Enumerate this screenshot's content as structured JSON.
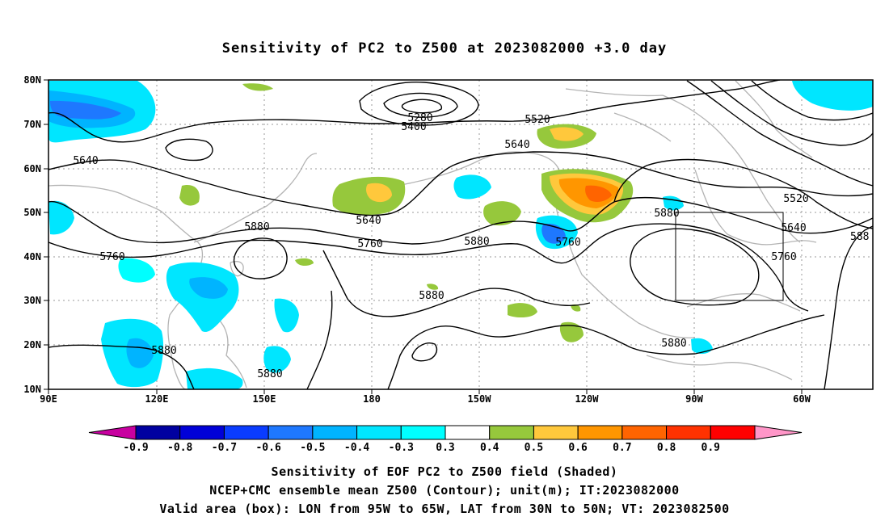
{
  "title": "Sensitivity of PC2 to Z500 at 2023082000 +3.0 day",
  "x_ticks": [
    "90E",
    "120E",
    "150E",
    "180",
    "150W",
    "120W",
    "90W",
    "60W"
  ],
  "y_ticks": [
    "80N",
    "70N",
    "60N",
    "50N",
    "40N",
    "30N",
    "20N",
    "10N"
  ],
  "contour_labels": [
    "5280",
    "5400",
    "5520",
    "5640",
    "5640",
    "5640",
    "5760",
    "5760",
    "5880",
    "5880",
    "5880",
    "5880",
    "5880",
    "5880",
    "5760",
    "5520",
    "5640",
    "5760",
    "588"
  ],
  "colorbar": {
    "colors": [
      "#c800a0",
      "#0000a0",
      "#0000d8",
      "#0a3cff",
      "#1e78ff",
      "#00b4ff",
      "#00e6ff",
      "#00ffff",
      "#ffffff",
      "#96c83c",
      "#ffc83c",
      "#ff9600",
      "#ff6400",
      "#ff3200",
      "#ff0000",
      "#ff96c8"
    ],
    "labels": [
      "-0.9",
      "-0.8",
      "-0.7",
      "-0.6",
      "-0.5",
      "-0.4",
      "-0.3",
      "0.3",
      "0.4",
      "0.5",
      "0.6",
      "0.7",
      "0.8",
      "0.9"
    ]
  },
  "captions": {
    "line1": "Sensitivity of EOF PC2 to Z500 field (Shaded)",
    "line2": "NCEP+CMC ensemble mean Z500 (Contour); unit(m); IT:2023082000",
    "line3": "Valid area (box): LON from 95W to 65W, LAT from 30N to 50N; VT: 2023082500"
  }
}
